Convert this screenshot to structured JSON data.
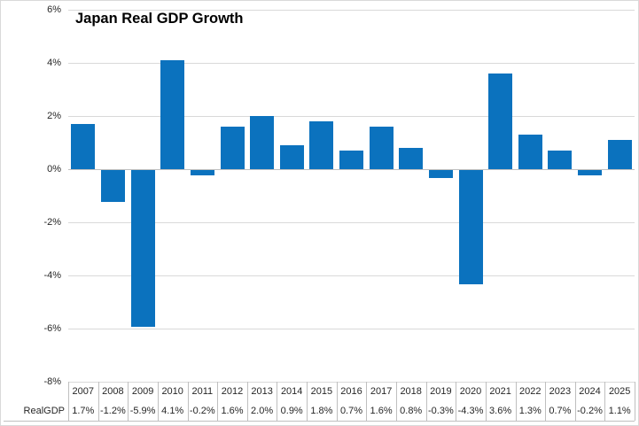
{
  "title": "Japan Real GDP Growth",
  "chart_data": {
    "type": "bar",
    "title": "Japan Real GDP Growth",
    "categories": [
      "2007",
      "2008",
      "2009",
      "2010",
      "2011",
      "2012",
      "2013",
      "2014",
      "2015",
      "2016",
      "2017",
      "2018",
      "2019",
      "2020",
      "2021",
      "2022",
      "2023",
      "2024",
      "2025"
    ],
    "series": [
      {
        "name": "RealGDP",
        "values": [
          1.7,
          -1.2,
          -5.9,
          4.1,
          -0.2,
          1.6,
          2.0,
          0.9,
          1.8,
          0.7,
          1.6,
          0.8,
          -0.3,
          -4.3,
          3.6,
          1.3,
          0.7,
          -0.2,
          1.1
        ],
        "labels": [
          "1.7%",
          "-1.2%",
          "-5.9%",
          "4.1%",
          "-0.2%",
          "1.6%",
          "2.0%",
          "0.9%",
          "1.8%",
          "0.7%",
          "1.6%",
          "0.8%",
          "-0.3%",
          "-4.3%",
          "3.6%",
          "1.3%",
          "0.7%",
          "-0.2%",
          "1.1%"
        ]
      }
    ],
    "xlabel": "",
    "ylabel": "",
    "ylim": [
      -8,
      6
    ],
    "y_tick_step": 2,
    "y_tick_labels": [
      "6%",
      "4%",
      "2%",
      "0%",
      "-2%",
      "-4%",
      "-6%",
      "-8%"
    ],
    "grid": true,
    "legend_position": "none",
    "data_table_shown": true
  },
  "data_table": {
    "row_label": "RealGDP"
  },
  "colors": {
    "bar": "#0B72BE",
    "gridline": "#D9D9D9",
    "zero_line": "#C0C0C0",
    "axis_text": "#262626",
    "title_text": "#000000",
    "table_border": "#BFBFBF",
    "chart_border": "#D9D9D9",
    "background": "#FFFFFF"
  }
}
